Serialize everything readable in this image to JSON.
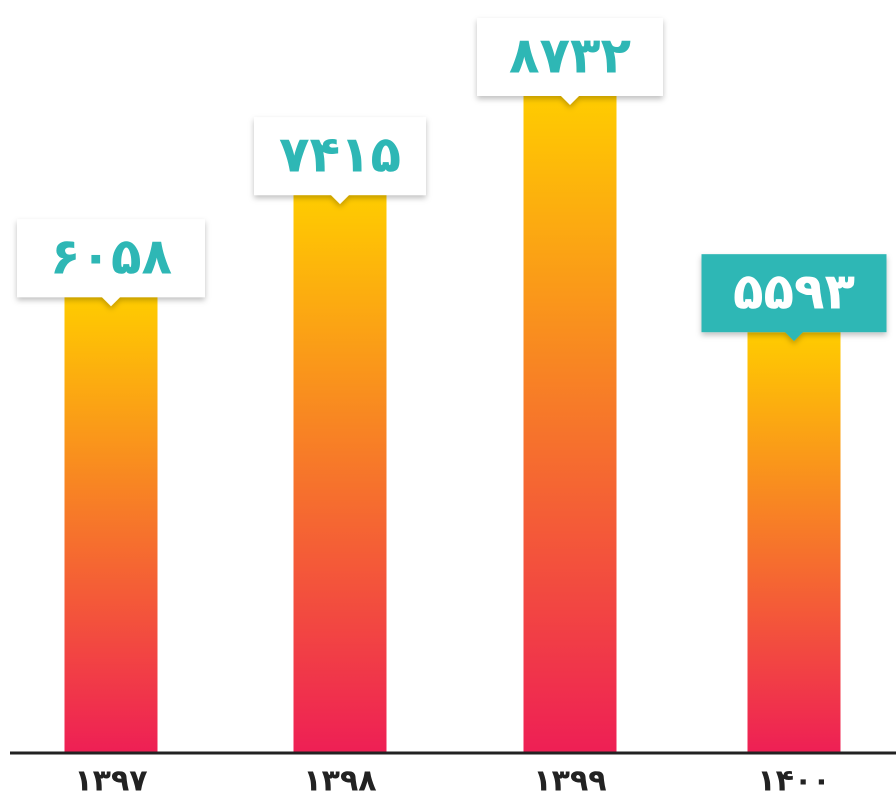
{
  "chart_data": {
    "type": "bar",
    "title": "",
    "xlabel": "",
    "ylabel": "",
    "categories": [
      "۱۳۹۷",
      "۱۳۹۸",
      "۱۳۹۹",
      "۱۴۰۰"
    ],
    "values": [
      6058,
      7415,
      8732,
      5593
    ],
    "value_labels": [
      "۶۰۵۸",
      "۷۴۱۵",
      "۸۷۳۲",
      "۵۵۹۳"
    ],
    "highlighted_index": 3,
    "grid": false,
    "legend": "none"
  },
  "colors": {
    "bar_top": "#ffcc00",
    "bar_bottom": "#ee1f55",
    "label_text": "#2db7b5",
    "label_box": "#ffffff",
    "highlight_box": "#2db7b5",
    "highlight_text": "#ffffff",
    "axis": "#222222"
  }
}
